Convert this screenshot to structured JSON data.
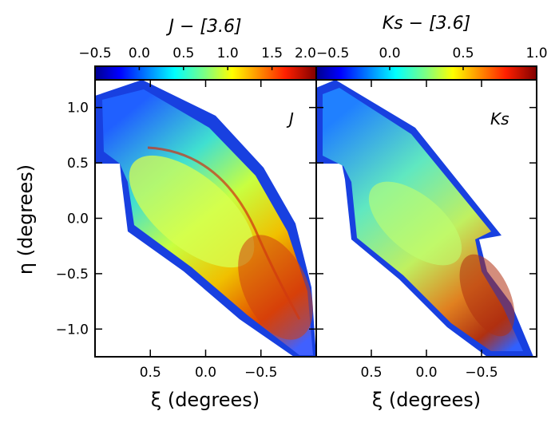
{
  "figure": {
    "y_axis_label": "η (degrees)",
    "x_axis_label": "ξ (degrees)"
  },
  "chart_data": [
    {
      "type": "heatmap",
      "panel": "left",
      "band_label": "J",
      "colorbar": {
        "title": "J − [3.6]",
        "range": [
          -0.5,
          2.0
        ],
        "ticks": [
          -0.5,
          0.0,
          0.5,
          1.0,
          1.5,
          2.0
        ],
        "tick_labels": [
          "−0.5",
          "0.0",
          "0.5",
          "1.0",
          "1.5",
          "2.0"
        ]
      },
      "x_axis": {
        "label": "ξ (degrees)",
        "range": [
          1.0,
          -1.0
        ],
        "ticks": [
          0.5,
          0.0,
          -0.5
        ],
        "tick_labels": [
          "0.5",
          "0.0",
          "−0.5"
        ]
      },
      "y_axis": {
        "label": "η (degrees)",
        "range": [
          -1.25,
          1.25
        ],
        "ticks": [
          1.0,
          0.5,
          0.0,
          -0.5,
          -1.0
        ],
        "tick_labels": [
          "1.0",
          "0.5",
          "0.0",
          "−0.5",
          "−1.0"
        ]
      },
      "colormap": "jet"
    },
    {
      "type": "heatmap",
      "panel": "right",
      "band_label": "Ks",
      "colorbar": {
        "title": "Ks − [3.6]",
        "range": [
          -0.5,
          1.0
        ],
        "ticks": [
          -0.5,
          0.0,
          0.5,
          1.0
        ],
        "tick_labels": [
          "−0.5",
          "0.0",
          "0.5",
          "1.0"
        ]
      },
      "x_axis": {
        "label": "ξ (degrees)",
        "range": [
          1.0,
          -1.0
        ],
        "ticks": [
          0.5,
          0.0,
          -0.5
        ],
        "tick_labels": [
          "0.5",
          "0.0",
          "−0.5"
        ]
      },
      "y_axis": {
        "range": [
          -1.25,
          1.25
        ],
        "ticks": [
          1.0,
          0.5,
          0.0,
          -0.5,
          -1.0
        ]
      },
      "colormap": "jet"
    }
  ]
}
